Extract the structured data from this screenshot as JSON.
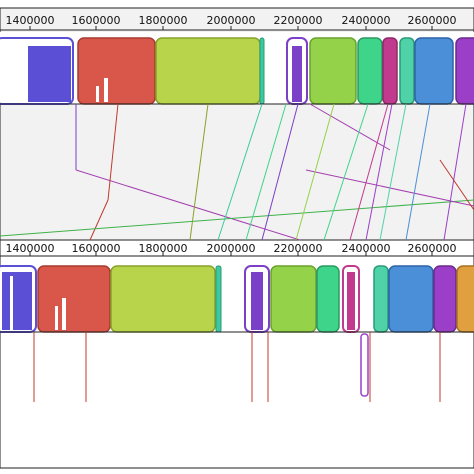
{
  "genomes": [
    {
      "id": "top",
      "ticks": [
        "1400000",
        "1600000",
        "1800000",
        "2000000",
        "2200000",
        "2400000",
        "2600000"
      ],
      "blocks": [
        {
          "name": "lcb-blue-partial",
          "color": "#5b4fd6",
          "side": "up"
        },
        {
          "name": "lcb-red",
          "color": "#d9574a",
          "side": "up"
        },
        {
          "name": "lcb-yellowgreen-large",
          "color": "#b7d44a",
          "side": "up"
        },
        {
          "name": "lcb-teal-thin",
          "color": "#3cc9a0",
          "side": "up"
        },
        {
          "name": "lcb-purple-small",
          "color": "#7b3fc8",
          "side": "up"
        },
        {
          "name": "lcb-green",
          "color": "#94d24a",
          "side": "up"
        },
        {
          "name": "lcb-emerald",
          "color": "#3ed48a",
          "side": "up"
        },
        {
          "name": "lcb-magenta",
          "color": "#c23a8e",
          "side": "up"
        },
        {
          "name": "lcb-seafoam",
          "color": "#4fd2a8",
          "side": "up"
        },
        {
          "name": "lcb-blue",
          "color": "#4b8fd8",
          "side": "up"
        },
        {
          "name": "lcb-violet-partial",
          "color": "#9b3fc8",
          "side": "up"
        }
      ]
    },
    {
      "id": "bottom",
      "ticks": [
        "1400000",
        "1600000",
        "1800000",
        "2000000",
        "2200000",
        "2400000",
        "2600000"
      ],
      "blocks": [
        {
          "name": "lcb-blue-partial",
          "color": "#5b4fd6",
          "side": "up"
        },
        {
          "name": "lcb-red",
          "color": "#d9574a",
          "side": "up"
        },
        {
          "name": "lcb-yellowgreen-large",
          "color": "#b7d44a",
          "side": "up"
        },
        {
          "name": "lcb-teal-thin",
          "color": "#3cc9a0",
          "side": "up"
        },
        {
          "name": "lcb-purple-small",
          "color": "#7b3fc8",
          "side": "up"
        },
        {
          "name": "lcb-green",
          "color": "#94d24a",
          "side": "up"
        },
        {
          "name": "lcb-emerald",
          "color": "#3ed48a",
          "side": "up"
        },
        {
          "name": "lcb-magenta",
          "color": "#c23a8e",
          "side": "up"
        },
        {
          "name": "lcb-magenta-inverted",
          "color": "#9b3fc8",
          "side": "down"
        },
        {
          "name": "lcb-seafoam",
          "color": "#4fd2a8",
          "side": "up"
        },
        {
          "name": "lcb-blue",
          "color": "#4b8fd8",
          "side": "up"
        },
        {
          "name": "lcb-violet",
          "color": "#9b3fc8",
          "side": "up"
        },
        {
          "name": "lcb-orange-partial",
          "color": "#e0a040",
          "side": "up"
        }
      ]
    }
  ],
  "colors": {
    "panel_bg": "#f2f2f2",
    "border": "#222222",
    "link_green": "#3fb24a",
    "link_purple": "#a43fb0",
    "link_red": "#c0392b"
  }
}
